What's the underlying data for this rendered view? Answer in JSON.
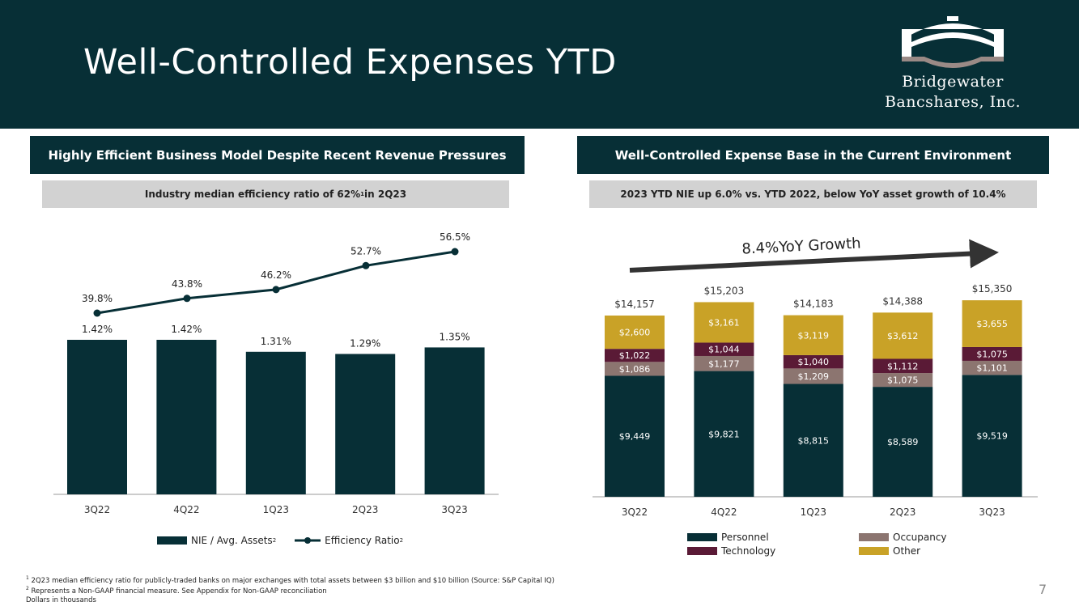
{
  "header": {
    "title": "Well-Controlled Expenses YTD"
  },
  "logo": {
    "line1": "Bridgewater",
    "line2": "Bancshares, Inc."
  },
  "left_panel": {
    "heading": "Highly Efficient Business Model Despite Recent Revenue Pressures",
    "subheading_pre": "Industry median efficiency ratio of 62%",
    "subheading_sup": "1",
    "subheading_post": " in 2Q23",
    "legend": {
      "bar_label": "NIE / Avg. Assets",
      "line_label": "Efficiency Ratio",
      "sup": "2"
    }
  },
  "right_panel": {
    "heading": "Well-Controlled Expense Base in the Current Environment",
    "subheading": "2023 YTD NIE up 6.0% vs. YTD 2022, below YoY asset growth of 10.4%",
    "growth_label": "8.4%YoY Growth",
    "legend": {
      "personnel": "Personnel",
      "technology": "Technology",
      "occupancy": "Occupancy",
      "other": "Other"
    }
  },
  "colors": {
    "dark": "#072f36",
    "tech": "#5a1a36",
    "occupancy": "#8c7570",
    "other": "#c9a227",
    "grey": "#d2d2d2"
  },
  "footnotes": {
    "n1_sup": "1",
    "n1": " 2Q23 median efficiency ratio for publicly-traded banks on major exchanges with total assets between $3 billion and $10 billion (Source: S&P Capital IQ)",
    "n2_sup": "2",
    "n2": " Represents a Non-GAAP financial measure. See Appendix for Non-GAAP reconciliation",
    "n3": "Dollars in thousands"
  },
  "page_number": "7",
  "chart_data": [
    {
      "type": "bar",
      "title": "",
      "categories": [
        "3Q22",
        "4Q22",
        "1Q23",
        "2Q23",
        "3Q23"
      ],
      "series": [
        {
          "name": "NIE / Avg. Assets",
          "kind": "bar",
          "values": [
            1.42,
            1.42,
            1.31,
            1.29,
            1.35
          ],
          "labels": [
            "1.42%",
            "1.42%",
            "1.31%",
            "1.29%",
            "1.35%"
          ]
        },
        {
          "name": "Efficiency Ratio",
          "kind": "line",
          "values": [
            39.8,
            43.8,
            46.2,
            52.7,
            56.5
          ],
          "labels": [
            "39.8%",
            "43.8%",
            "46.2%",
            "52.7%",
            "56.5%"
          ]
        }
      ],
      "legend": "bottom"
    },
    {
      "type": "bar",
      "stacked": true,
      "title": "",
      "categories": [
        "3Q22",
        "4Q22",
        "1Q23",
        "2Q23",
        "3Q23"
      ],
      "series": [
        {
          "name": "Personnel",
          "values": [
            9449,
            9821,
            8815,
            8589,
            9519
          ],
          "labels": [
            "$9,449",
            "$9,821",
            "$8,815",
            "$8,589",
            "$9,519"
          ]
        },
        {
          "name": "Occupancy",
          "values": [
            1086,
            1177,
            1209,
            1075,
            1101
          ],
          "labels": [
            "$1,086",
            "$1,177",
            "$1,209",
            "$1,075",
            "$1,101"
          ]
        },
        {
          "name": "Technology",
          "values": [
            1022,
            1044,
            1040,
            1112,
            1075
          ],
          "labels": [
            "$1,022",
            "$1,044",
            "$1,040",
            "$1,112",
            "$1,075"
          ]
        },
        {
          "name": "Other",
          "values": [
            2600,
            3161,
            3119,
            3612,
            3655
          ],
          "labels": [
            "$2,600",
            "$3,161",
            "$3,119",
            "$3,612",
            "$3,655"
          ]
        }
      ],
      "totals": [
        14157,
        15203,
        14183,
        14388,
        15350
      ],
      "total_labels": [
        "$14,157",
        "$15,203",
        "$14,183",
        "$14,388",
        "$15,350"
      ],
      "legend": "bottom"
    }
  ]
}
